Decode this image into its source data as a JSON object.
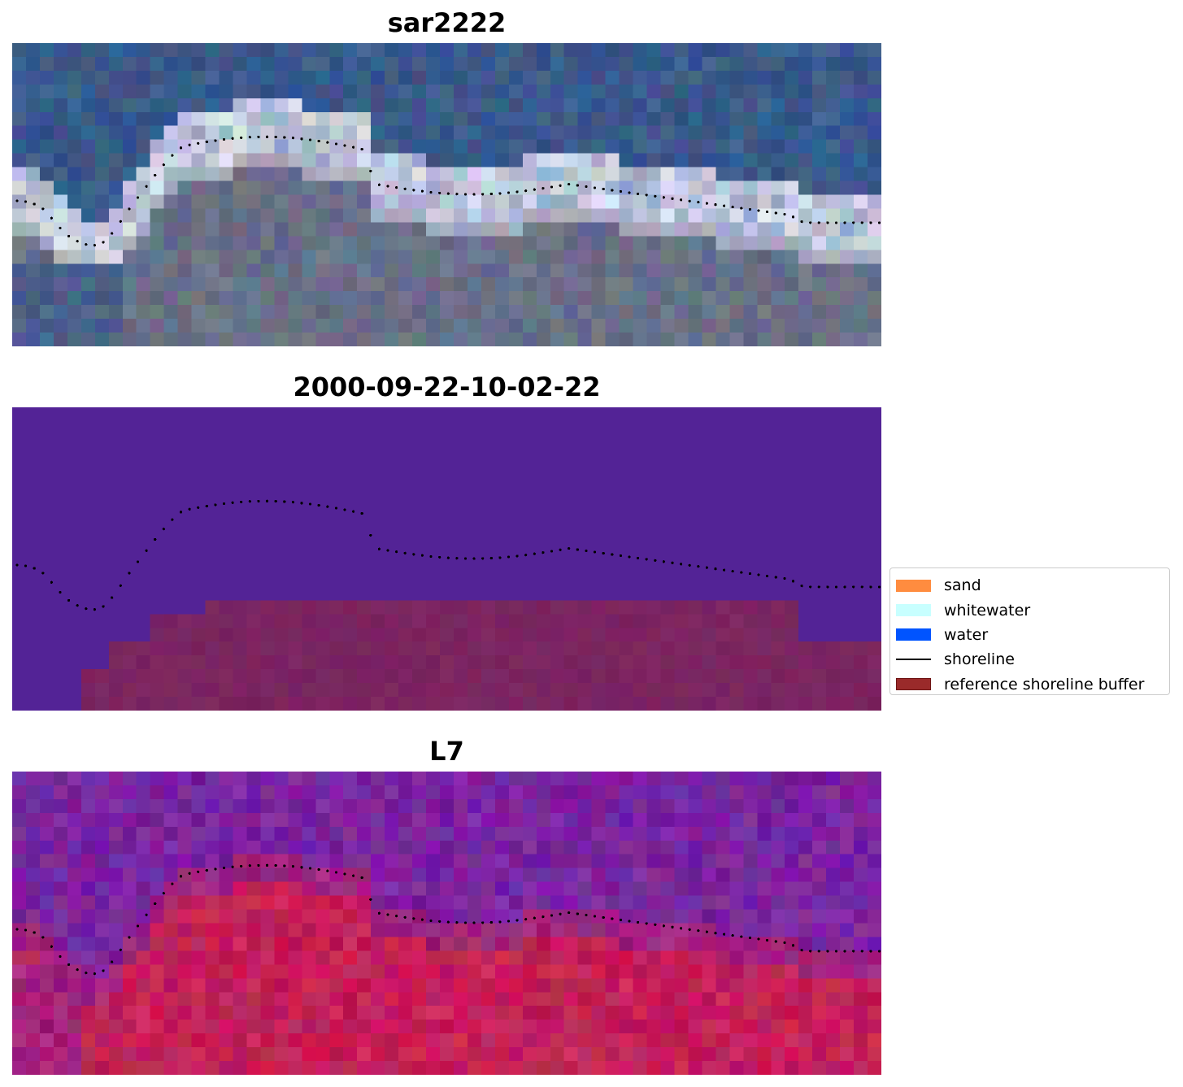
{
  "panels": [
    {
      "title": "sar2222",
      "kind": "rgb"
    },
    {
      "title": "2000-09-22-10-02-22",
      "kind": "classification"
    },
    {
      "title": "L7",
      "kind": "falsecolor"
    }
  ],
  "legend": {
    "items": [
      {
        "label": "sand",
        "type": "patch",
        "color": "#ff8c3f"
      },
      {
        "label": "whitewater",
        "type": "patch",
        "color": "#c8ffff"
      },
      {
        "label": "water",
        "type": "patch",
        "color": "#0054ff"
      },
      {
        "label": "shoreline",
        "type": "line",
        "color": "#000000"
      },
      {
        "label": "reference shoreline buffer",
        "type": "patch",
        "color": "#9a2a2a",
        "edge": "#6e1414"
      }
    ]
  },
  "colors": {
    "ocean_blue": "#3a5a8c",
    "land_grey": "#6a7087",
    "surf_white": "#e6e8f4",
    "class_water": "#532396",
    "buffer_overlay": "#7b2560",
    "fc_water": "#7a24a0",
    "fc_land": "#c42058"
  }
}
